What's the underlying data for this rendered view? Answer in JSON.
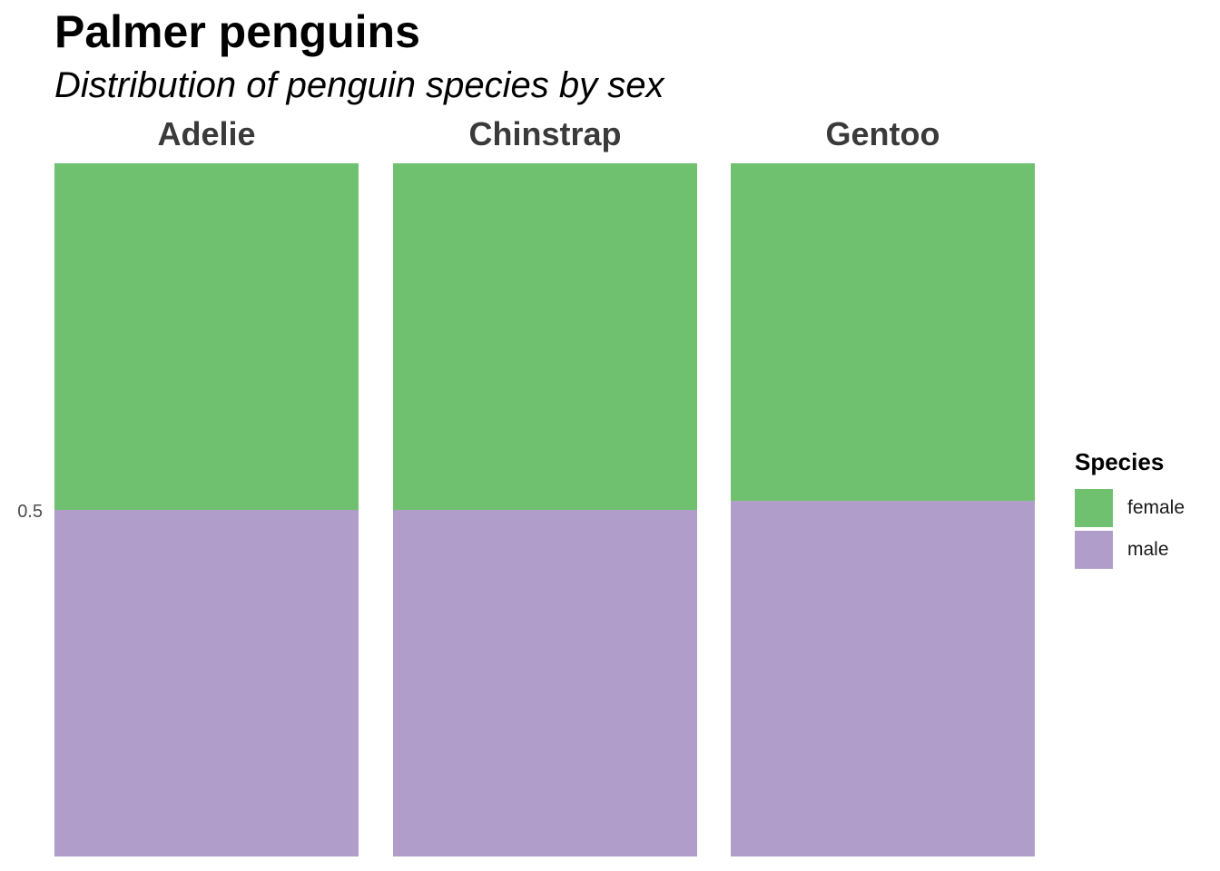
{
  "title": "Palmer penguins",
  "subtitle": "Distribution of penguin species by sex",
  "legend": {
    "title": "Species",
    "items": [
      {
        "label": "female",
        "color": "#6fc16f"
      },
      {
        "label": "male",
        "color": "#b09dca"
      }
    ]
  },
  "chart_data": {
    "type": "bar",
    "stacked": true,
    "faceted": true,
    "categories": [
      "Adelie",
      "Chinstrap",
      "Gentoo"
    ],
    "series": [
      {
        "name": "male",
        "color": "#b09dca",
        "values": [
          0.5,
          0.5,
          0.513
        ]
      },
      {
        "name": "female",
        "color": "#6fc16f",
        "values": [
          0.5,
          0.5,
          0.487
        ]
      }
    ],
    "yticks": [
      0.5
    ],
    "ylim": [
      0,
      1
    ],
    "xlabel": "",
    "ylabel": "",
    "grid": false,
    "legend_position": "right"
  }
}
